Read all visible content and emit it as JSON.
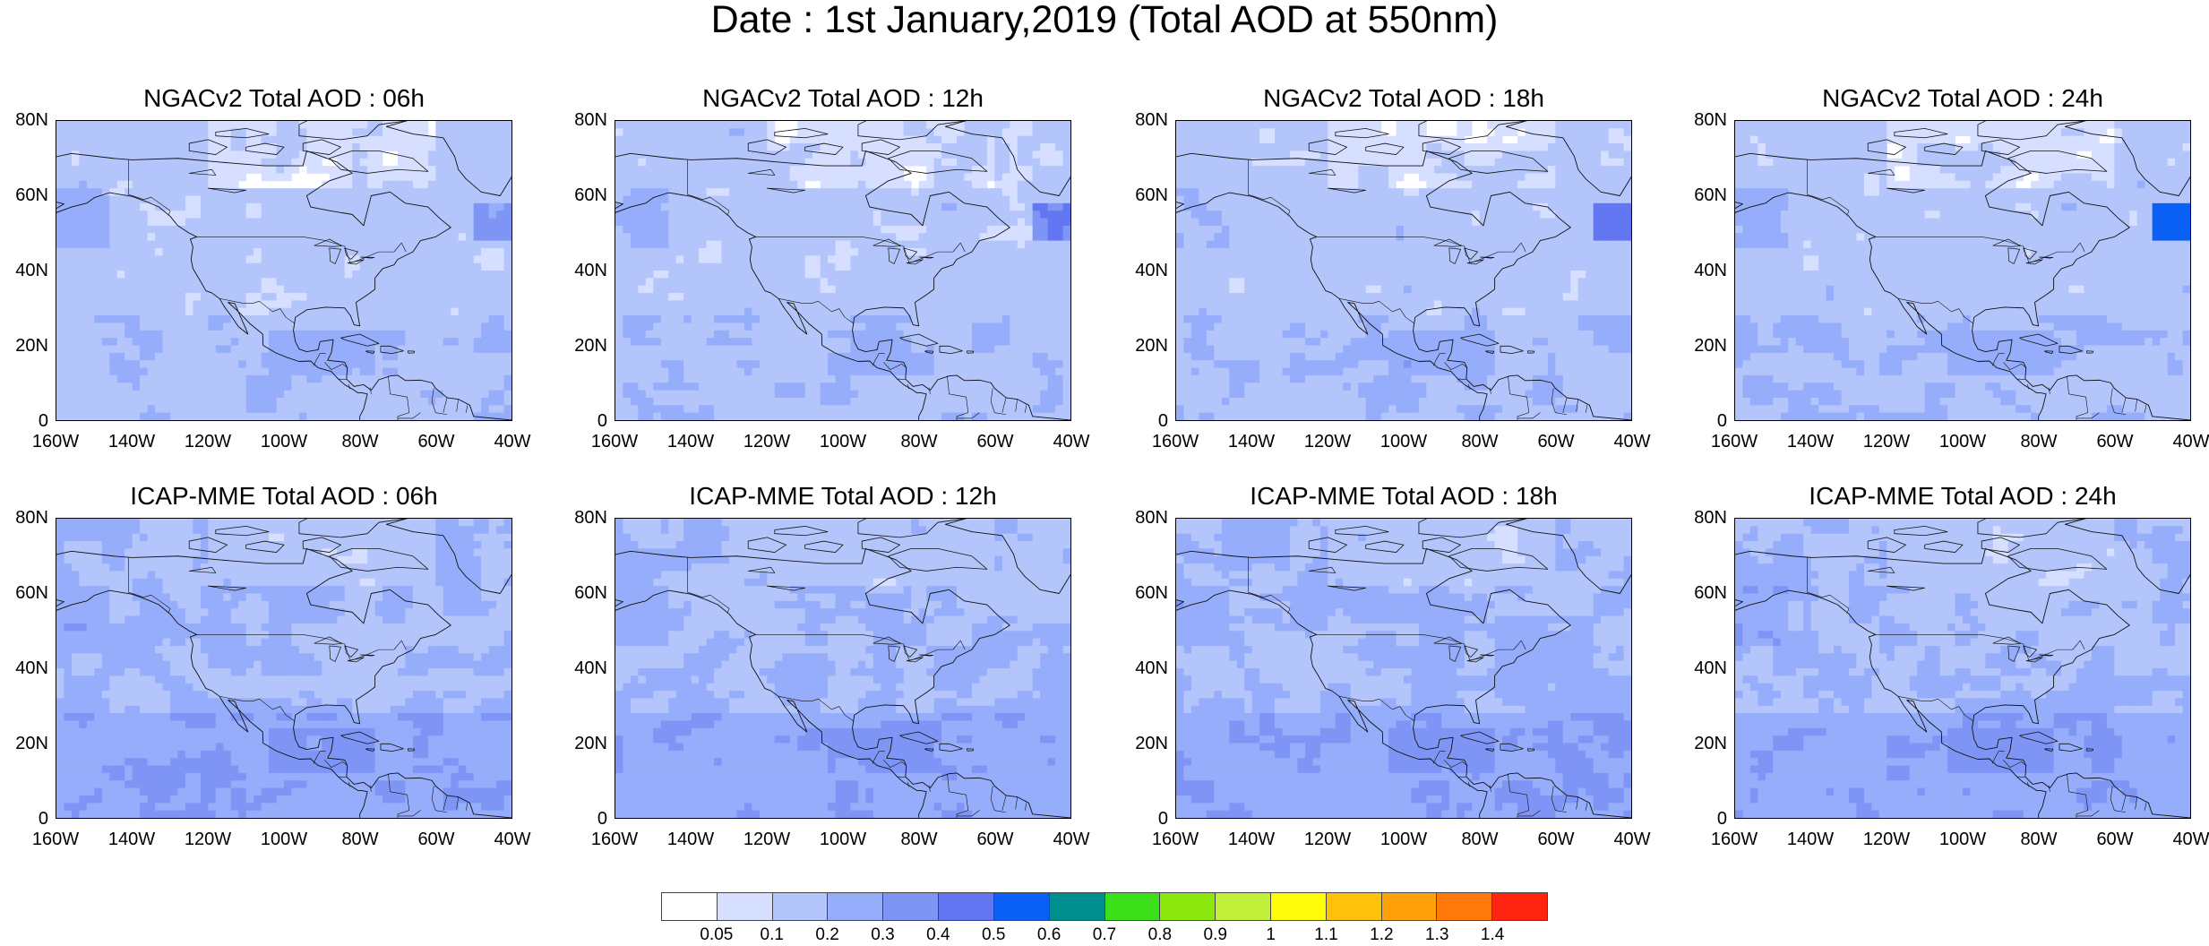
{
  "title": "Date : 1st January,2019 (Total AOD at 550nm)",
  "panels": [
    {
      "title": "NGACv2 Total AOD : 06h",
      "model": "NGAC",
      "hour": 6
    },
    {
      "title": "NGACv2 Total AOD : 12h",
      "model": "NGAC",
      "hour": 12
    },
    {
      "title": "NGACv2 Total AOD : 18h",
      "model": "NGAC",
      "hour": 18
    },
    {
      "title": "NGACv2 Total AOD : 24h",
      "model": "NGAC",
      "hour": 24
    },
    {
      "title": "ICAP-MME Total AOD : 06h",
      "model": "ICAP",
      "hour": 6
    },
    {
      "title": "ICAP-MME Total AOD : 12h",
      "model": "ICAP",
      "hour": 12
    },
    {
      "title": "ICAP-MME Total AOD : 18h",
      "model": "ICAP",
      "hour": 18
    },
    {
      "title": "ICAP-MME Total AOD : 24h",
      "model": "ICAP",
      "hour": 24
    }
  ],
  "lat_ticks": [
    "80N",
    "60N",
    "40N",
    "20N",
    "0"
  ],
  "lon_ticks": [
    "160W",
    "140W",
    "120W",
    "100W",
    "80W",
    "60W",
    "40W"
  ],
  "extent": {
    "lon_min": -160,
    "lon_max": -40,
    "lat_min": 0,
    "lat_max": 80
  },
  "colorbar": {
    "labels": [
      "0.05",
      "0.1",
      "0.2",
      "0.3",
      "0.4",
      "0.5",
      "0.6",
      "0.7",
      "0.8",
      "0.9",
      "1",
      "1.1",
      "1.2",
      "1.3",
      "1.4"
    ],
    "colors": [
      "#ffffff",
      "#d6dfff",
      "#b3c5fb",
      "#95adfa",
      "#7f95f6",
      "#6276f2",
      "#0a60f5",
      "#008f8f",
      "#3ce01a",
      "#8ce80c",
      "#c2f03a",
      "#fffc0a",
      "#ffc20a",
      "#ffa10a",
      "#ff7a0a",
      "#ff2410"
    ]
  }
}
